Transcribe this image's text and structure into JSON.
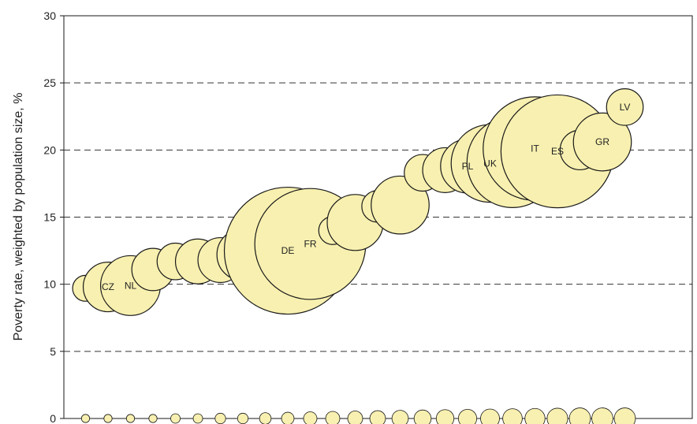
{
  "chart_data": {
    "type": "scatter",
    "title": "",
    "xlabel": "",
    "ylabel": "Poverty rate, weighted by population size, %",
    "ylim": [
      0,
      30
    ],
    "yticks": [
      "0",
      "5",
      "10",
      "15",
      "20",
      "25",
      "30"
    ],
    "xlim": [
      0,
      26
    ],
    "grid": "dashed horizontal",
    "bubble_fill": "#f8f0b0",
    "bubble_stroke": "#1a1a1a",
    "grid_color": "#333333",
    "points": [
      {
        "x": 1,
        "y": 9.7,
        "size": 0.3,
        "label": ""
      },
      {
        "x": 2,
        "y": 9.8,
        "size": 1.1,
        "label": "CZ"
      },
      {
        "x": 3,
        "y": 9.9,
        "size": 1.6,
        "label": "NL"
      },
      {
        "x": 4,
        "y": 11.1,
        "size": 0.8,
        "label": ""
      },
      {
        "x": 5,
        "y": 11.7,
        "size": 0.6,
        "label": ""
      },
      {
        "x": 6,
        "y": 11.7,
        "size": 0.9,
        "label": ""
      },
      {
        "x": 7,
        "y": 11.8,
        "size": 0.9,
        "label": ""
      },
      {
        "x": 8,
        "y": 12.2,
        "size": 1.2,
        "label": ""
      },
      {
        "x": 9,
        "y": 12.5,
        "size": 0.8,
        "label": ""
      },
      {
        "x": 10,
        "y": 12.5,
        "size": 7.2,
        "label": "DE"
      },
      {
        "x": 11,
        "y": 13.0,
        "size": 5.5,
        "label": "FR"
      },
      {
        "x": 12,
        "y": 14.0,
        "size": 0.35,
        "label": ""
      },
      {
        "x": 13,
        "y": 14.6,
        "size": 1.4,
        "label": ""
      },
      {
        "x": 14,
        "y": 15.8,
        "size": 0.45,
        "label": ""
      },
      {
        "x": 15,
        "y": 15.9,
        "size": 1.5,
        "label": ""
      },
      {
        "x": 16,
        "y": 18.3,
        "size": 0.6,
        "label": ""
      },
      {
        "x": 17,
        "y": 18.5,
        "size": 0.9,
        "label": ""
      },
      {
        "x": 18,
        "y": 18.8,
        "size": 1.3,
        "label": "PL"
      },
      {
        "x": 19,
        "y": 19.0,
        "size": 2.7,
        "label": "UK"
      },
      {
        "x": 20,
        "y": 19.1,
        "size": 3.7,
        "label": ""
      },
      {
        "x": 21,
        "y": 20.1,
        "size": 4.8,
        "label": "IT"
      },
      {
        "x": 22,
        "y": 19.9,
        "size": 5.7,
        "label": "ES"
      },
      {
        "x": 23,
        "y": 20.0,
        "size": 0.7,
        "label": ""
      },
      {
        "x": 24,
        "y": 20.6,
        "size": 1.5,
        "label": "GR"
      },
      {
        "x": 25,
        "y": 23.2,
        "size": 0.6,
        "label": "LV"
      },
      {
        "x": 1,
        "y": 0,
        "size": 0.03,
        "label": ""
      },
      {
        "x": 2,
        "y": 0,
        "size": 0.03,
        "label": ""
      },
      {
        "x": 3,
        "y": 0,
        "size": 0.03,
        "label": ""
      },
      {
        "x": 4,
        "y": 0,
        "size": 0.03,
        "label": ""
      },
      {
        "x": 5,
        "y": 0,
        "size": 0.04,
        "label": ""
      },
      {
        "x": 6,
        "y": 0,
        "size": 0.04,
        "label": ""
      },
      {
        "x": 7,
        "y": 0,
        "size": 0.05,
        "label": ""
      },
      {
        "x": 8,
        "y": 0,
        "size": 0.05,
        "label": ""
      },
      {
        "x": 9,
        "y": 0,
        "size": 0.06,
        "label": ""
      },
      {
        "x": 10,
        "y": 0,
        "size": 0.07,
        "label": ""
      },
      {
        "x": 11,
        "y": 0,
        "size": 0.08,
        "label": ""
      },
      {
        "x": 12,
        "y": 0,
        "size": 0.09,
        "label": ""
      },
      {
        "x": 13,
        "y": 0,
        "size": 0.1,
        "label": ""
      },
      {
        "x": 14,
        "y": 0,
        "size": 0.11,
        "label": ""
      },
      {
        "x": 15,
        "y": 0,
        "size": 0.12,
        "label": ""
      },
      {
        "x": 16,
        "y": 0,
        "size": 0.13,
        "label": ""
      },
      {
        "x": 17,
        "y": 0,
        "size": 0.14,
        "label": ""
      },
      {
        "x": 18,
        "y": 0,
        "size": 0.15,
        "label": ""
      },
      {
        "x": 19,
        "y": 0,
        "size": 0.16,
        "label": ""
      },
      {
        "x": 20,
        "y": 0,
        "size": 0.17,
        "label": ""
      },
      {
        "x": 21,
        "y": 0,
        "size": 0.18,
        "label": ""
      },
      {
        "x": 22,
        "y": 0,
        "size": 0.19,
        "label": ""
      },
      {
        "x": 23,
        "y": 0,
        "size": 0.2,
        "label": ""
      },
      {
        "x": 24,
        "y": 0,
        "size": 0.2,
        "label": ""
      },
      {
        "x": 25,
        "y": 0,
        "size": 0.2,
        "label": ""
      }
    ]
  }
}
